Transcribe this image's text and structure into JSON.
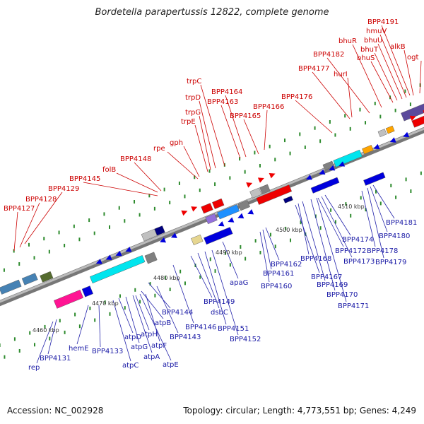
{
  "title": "Bordetella parapertussis 12822, complete genome",
  "footer": {
    "accession": "Accession: NC_002928",
    "stats": "Topology: circular; Length: 4,773,551 bp; Genes: 4,249"
  },
  "colors": {
    "forward_gene": "#ee0000",
    "reverse_gene": "#0000dd",
    "leader_red": "#cc0000",
    "leader_blue": "#2222aa",
    "backbone": "#999999",
    "tick": "#2e8b2e"
  },
  "scale_labels": [
    "4460 kbp",
    "4470 kbp",
    "4480 kbp",
    "4490 kbp",
    "4500 kbp",
    "4510 kbp"
  ],
  "top_labels": [
    "BPP4127",
    "BPP4128",
    "BPP4129",
    "BPP4145",
    "folB",
    "BPP4148",
    "rpe",
    "gph",
    "trpE",
    "trpG",
    "trpD",
    "trpC",
    "BPP4163",
    "BPP4164",
    "BPP4165",
    "BPP4166",
    "BPP4176",
    "BPP4177",
    "hurI",
    "BPP4182",
    "bhuR",
    "bhuS",
    "bhuT",
    "bhuU",
    "hmuV",
    "BPP4191",
    "alkB",
    "ogt"
  ],
  "bottom_labels": [
    "rep",
    "BPP4131",
    "hemE",
    "BPP4133",
    "atpC",
    "atpD",
    "atpG",
    "atpA",
    "atpE",
    "atpH",
    "atpF",
    "atpB",
    "BPP4143",
    "BPP4144",
    "BPP4146",
    "BPP4149",
    "dsbC",
    "BPP4151",
    "BPP4152",
    "apaG",
    "BPP4160",
    "BPP4161",
    "BPP4162",
    "BPP4167",
    "BPP4168",
    "BPP4169",
    "BPP4170",
    "BPP4171",
    "BPP4172",
    "BPP4173",
    "BPP4174",
    "BPP4178",
    "BPP4179",
    "BPP4180",
    "BPP4181"
  ]
}
